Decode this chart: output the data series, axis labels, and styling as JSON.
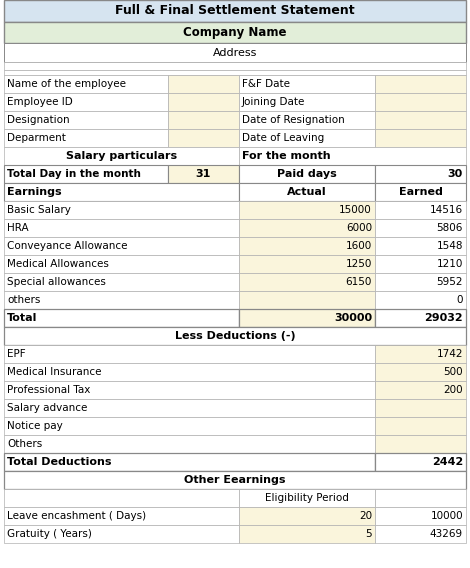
{
  "title": "Full & Final Settlement Statement",
  "company": "Company Name",
  "address": "Address",
  "light_blue": "#d6e4f0",
  "light_green": "#e2eed9",
  "yellow_bg": "#faf5dc",
  "white": "#ffffff",
  "rows": [
    {
      "type": "info_label",
      "label": "Name of the employee",
      "right_label": "F&F Date"
    },
    {
      "type": "info_label",
      "label": "Employee ID",
      "right_label": "Joining Date"
    },
    {
      "type": "info_label",
      "label": "Designation",
      "right_label": "Date of Resignation"
    },
    {
      "type": "info_label",
      "label": "Deparment",
      "right_label": "Date of Leaving"
    },
    {
      "type": "subheader_left",
      "label": "Salary particulars",
      "right_label": "For the month"
    },
    {
      "type": "bold_row",
      "label": "Total Day in the month",
      "val1": "31",
      "right_label": "Paid days",
      "val2": "30"
    },
    {
      "type": "section_label",
      "label": "Earnings",
      "right_label": "Actual",
      "val2": "Earned"
    },
    {
      "type": "data_row",
      "label": "Basic Salary",
      "actual": "15000",
      "earned": "14516"
    },
    {
      "type": "data_row",
      "label": "HRA",
      "actual": "6000",
      "earned": "5806"
    },
    {
      "type": "data_row",
      "label": "Conveyance Allowance",
      "actual": "1600",
      "earned": "1548"
    },
    {
      "type": "data_row",
      "label": "Medical Allowances",
      "actual": "1250",
      "earned": "1210"
    },
    {
      "type": "data_row",
      "label": "Special allowances",
      "actual": "6150",
      "earned": "5952"
    },
    {
      "type": "data_row",
      "label": "others",
      "actual": "",
      "earned": "0"
    },
    {
      "type": "total_row",
      "label": "Total",
      "actual": "30000",
      "earned": "29032"
    },
    {
      "type": "centered_header",
      "label": "Less Deductions (-)"
    },
    {
      "type": "deduct_row",
      "label": "EPF",
      "earned": "1742"
    },
    {
      "type": "deduct_row",
      "label": "Medical Insurance",
      "earned": "500"
    },
    {
      "type": "deduct_row",
      "label": "Professional Tax",
      "earned": "200"
    },
    {
      "type": "deduct_row",
      "label": "Salary advance",
      "earned": ""
    },
    {
      "type": "deduct_row",
      "label": "Notice pay",
      "earned": ""
    },
    {
      "type": "deduct_row",
      "label": "Others",
      "earned": ""
    },
    {
      "type": "total_deduct",
      "label": "Total Deductions",
      "earned": "2442"
    },
    {
      "type": "centered_header",
      "label": "Other Eearnings"
    },
    {
      "type": "other_header",
      "label": "",
      "right_label": "Eligibility Period"
    },
    {
      "type": "other_row",
      "label": "Leave encashment ( Days)",
      "actual": "20",
      "earned": "10000"
    },
    {
      "type": "other_row",
      "label": "Gratuity ( Years)",
      "actual": "5",
      "earned": "43269"
    }
  ]
}
